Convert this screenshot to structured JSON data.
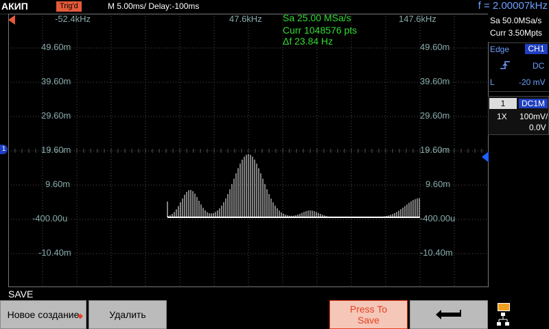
{
  "topbar": {
    "brand": "АКИП",
    "trig_status": "Trig'd",
    "timebase": "M 5.00ms/ Delay:-100ms",
    "frequency": "f = 2.00007kHz"
  },
  "right_panel": {
    "sample_rate": "Sa 50.0MSa/s",
    "memory": "Curr 3.50Mpts",
    "trigger_type": "Edge",
    "trigger_source": "CH1",
    "coupling": "DC",
    "level_label": "L",
    "level_value": "-20 mV",
    "channel_num": "1",
    "channel_coupling": "DC1M",
    "probe": "1X",
    "scale": "100mV/",
    "offset": "0.0V"
  },
  "fft": {
    "freq_labels": [
      "-52.4kHz",
      "47.6kHz",
      "147.6kHz"
    ],
    "level_labels": [
      "49.60m",
      "39.60m",
      "29.60m",
      "19.60m",
      "9.60m",
      "-400.00u",
      "-10.40m"
    ],
    "measurements": [
      "Sa 25.00 MSa/s",
      "Curr 1048576 pts",
      "Δf 23.84 Hz"
    ]
  },
  "markers": {
    "channel_marker": "1"
  },
  "bottom": {
    "menu_title": "SAVE",
    "btn_new": "Новое создание",
    "btn_delete": "Удалить",
    "btn_press_line1": "Press To",
    "btn_press_line2": "Save"
  },
  "colors": {
    "ch1": "#1f3fbf",
    "trigger": "#e65a3a",
    "measurement": "#33dd33",
    "frequency": "#6ea0ff"
  }
}
